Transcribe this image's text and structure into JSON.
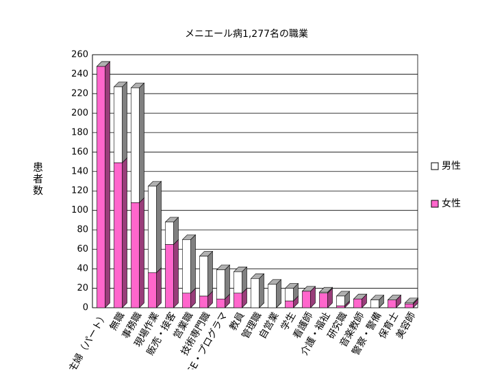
{
  "chart_data": {
    "type": "bar3d_stacked",
    "title": "メニエール病1,277名の職業",
    "y_label": "患者数",
    "categories": [
      "主婦（パート）",
      "無職",
      "事務職",
      "現場作業",
      "販売・接客",
      "営業職",
      "技術専門職",
      "SE・プログラマ",
      "教員",
      "管理職",
      "自営業",
      "学生",
      "看護師",
      "介護・福祉",
      "研究職",
      "音楽教師",
      "警察・警備",
      "保育士",
      "美容師"
    ],
    "series": [
      {
        "name": "女性",
        "color": "#ff66cc",
        "values": [
          248,
          149,
          108,
          36,
          65,
          15,
          12,
          9,
          15,
          0,
          0,
          7,
          17,
          15,
          2,
          9,
          0,
          8,
          4
        ]
      },
      {
        "name": "男性",
        "color": "#ffffff",
        "values": [
          0,
          78,
          118,
          89,
          23,
          55,
          41,
          30,
          22,
          30,
          24,
          13,
          0,
          1,
          10,
          0,
          8,
          0,
          1
        ]
      }
    ],
    "ylim": [
      0,
      260
    ],
    "yticks": [
      0,
      20,
      40,
      60,
      80,
      100,
      120,
      140,
      160,
      180,
      200,
      220,
      240,
      260
    ],
    "grid": true
  }
}
